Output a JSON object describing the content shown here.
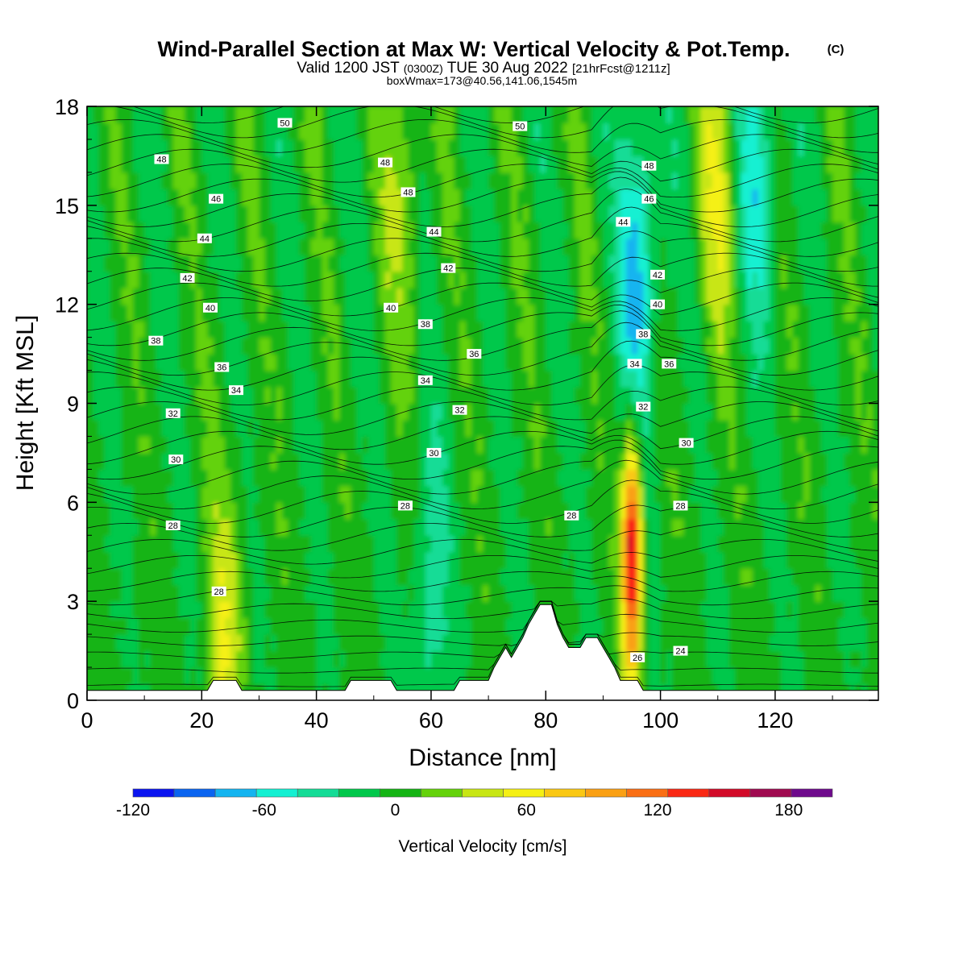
{
  "header": {
    "title": "Wind-Parallel Section at Max W: Vertical Velocity & Pot.Temp.",
    "title_mark": "(C)",
    "valid_a": "Valid 1200 JST",
    "valid_b": "(0300Z)",
    "valid_c": "TUE 30 Aug 2022",
    "valid_d": "[21hrFcst@1211z]",
    "box_info": "boxWmax=173@40.56,141.06,1545m"
  },
  "chart_data": {
    "type": "heatmap",
    "title": "Wind-Parallel Section at Max W: Vertical Velocity & Pot.Temp.",
    "xlabel": "Distance [nm]",
    "ylabel": "Height [Kft MSL]",
    "xlim": [
      0,
      138
    ],
    "ylim": [
      0,
      18
    ],
    "xticks": [
      0,
      20,
      40,
      60,
      80,
      100,
      120
    ],
    "yticks": [
      0,
      3,
      6,
      9,
      12,
      15,
      18
    ],
    "grid": false,
    "colorbar": {
      "label": "Vertical Velocity [cm/s]",
      "tick_labels": [
        "-120",
        "-60",
        "0",
        "60",
        "120",
        "180"
      ],
      "tick_values": [
        -120,
        -60,
        0,
        60,
        120,
        180
      ],
      "range": [
        -120,
        200
      ],
      "step": 20,
      "colors": [
        "#0a14f0",
        "#0a64f0",
        "#14b4f0",
        "#14f0d2",
        "#14dc96",
        "#00c84b",
        "#14b414",
        "#64d20a",
        "#c8e614",
        "#f5f014",
        "#fac814",
        "#faa014",
        "#fa6e14",
        "#fa2814",
        "#d20a28",
        "#a00a50",
        "#6e0a8c"
      ]
    },
    "w_features": [
      {
        "x": 95,
        "z": 4.5,
        "w": 173
      },
      {
        "x": 110,
        "z": 16.0,
        "w": 50
      },
      {
        "x": 96,
        "z": 13.0,
        "w": -80
      },
      {
        "x": 55,
        "z": 16.0,
        "w": 40
      },
      {
        "x": 24,
        "z": 1.8,
        "w": 50
      },
      {
        "x": 60,
        "z": 3.0,
        "w": -40
      },
      {
        "x": 117,
        "z": 16.5,
        "w": -60
      }
    ],
    "terrain_x": [
      0,
      21,
      22,
      26,
      27,
      45,
      46,
      53,
      54,
      64,
      65,
      70,
      71,
      72,
      73,
      74,
      75,
      76,
      77,
      78,
      79,
      80,
      81,
      82,
      83,
      84,
      85,
      86,
      87,
      88,
      89,
      90,
      91,
      92,
      93,
      94,
      95,
      96,
      97,
      98,
      99,
      100,
      101,
      138
    ],
    "terrain_z": [
      0.3,
      0.3,
      0.6,
      0.6,
      0.3,
      0.3,
      0.6,
      0.6,
      0.3,
      0.3,
      0.6,
      0.6,
      1.0,
      1.3,
      1.6,
      1.3,
      1.6,
      1.9,
      2.3,
      2.6,
      2.9,
      2.9,
      2.9,
      2.3,
      1.9,
      1.6,
      1.6,
      1.6,
      1.9,
      1.9,
      1.9,
      1.6,
      1.3,
      1.0,
      0.6,
      0.6,
      0.6,
      0.6,
      0.3,
      0.3,
      0.3,
      0.3,
      0.3,
      0.3
    ],
    "theta_labels": [
      {
        "x": 34.5,
        "z": 17.5,
        "text": "50"
      },
      {
        "x": 75.5,
        "z": 17.4,
        "text": "50"
      },
      {
        "x": 13,
        "z": 16.4,
        "text": "48"
      },
      {
        "x": 52,
        "z": 16.3,
        "text": "48"
      },
      {
        "x": 56,
        "z": 15.4,
        "text": "48"
      },
      {
        "x": 98,
        "z": 16.2,
        "text": "48"
      },
      {
        "x": 22.5,
        "z": 15.2,
        "text": "46"
      },
      {
        "x": 98,
        "z": 15.2,
        "text": "46"
      },
      {
        "x": 20.5,
        "z": 14.0,
        "text": "44"
      },
      {
        "x": 60.5,
        "z": 14.2,
        "text": "44"
      },
      {
        "x": 93.5,
        "z": 14.5,
        "text": "44"
      },
      {
        "x": 17.5,
        "z": 12.8,
        "text": "42"
      },
      {
        "x": 63,
        "z": 13.1,
        "text": "42"
      },
      {
        "x": 99.5,
        "z": 12.9,
        "text": "42"
      },
      {
        "x": 21.5,
        "z": 11.9,
        "text": "40"
      },
      {
        "x": 53,
        "z": 11.9,
        "text": "40"
      },
      {
        "x": 99.5,
        "z": 12.0,
        "text": "40"
      },
      {
        "x": 12,
        "z": 10.9,
        "text": "38"
      },
      {
        "x": 59,
        "z": 11.4,
        "text": "38"
      },
      {
        "x": 97,
        "z": 11.1,
        "text": "38"
      },
      {
        "x": 23.5,
        "z": 10.1,
        "text": "36"
      },
      {
        "x": 67.5,
        "z": 10.5,
        "text": "36"
      },
      {
        "x": 101.5,
        "z": 10.2,
        "text": "36"
      },
      {
        "x": 26,
        "z": 9.4,
        "text": "34"
      },
      {
        "x": 59,
        "z": 9.7,
        "text": "34"
      },
      {
        "x": 95.5,
        "z": 10.2,
        "text": "34"
      },
      {
        "x": 15,
        "z": 8.7,
        "text": "32"
      },
      {
        "x": 65,
        "z": 8.8,
        "text": "32"
      },
      {
        "x": 97,
        "z": 8.9,
        "text": "32"
      },
      {
        "x": 15.5,
        "z": 7.3,
        "text": "30"
      },
      {
        "x": 60.5,
        "z": 7.5,
        "text": "30"
      },
      {
        "x": 104.5,
        "z": 7.8,
        "text": "30"
      },
      {
        "x": 15,
        "z": 5.3,
        "text": "28"
      },
      {
        "x": 55.5,
        "z": 5.9,
        "text": "28"
      },
      {
        "x": 84.5,
        "z": 5.6,
        "text": "28"
      },
      {
        "x": 103.5,
        "z": 5.9,
        "text": "28"
      },
      {
        "x": 23,
        "z": 3.3,
        "text": "28"
      },
      {
        "x": 96,
        "z": 1.3,
        "text": "26"
      },
      {
        "x": 103.5,
        "z": 1.5,
        "text": "24"
      }
    ]
  }
}
